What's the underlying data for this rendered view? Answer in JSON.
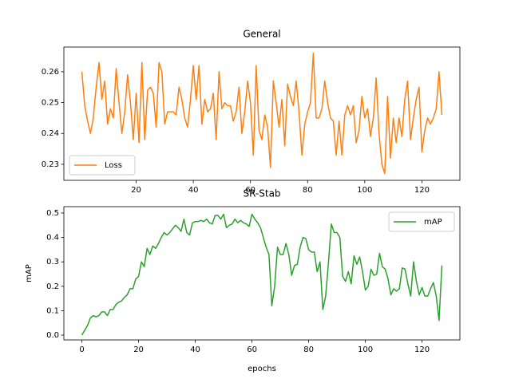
{
  "chart_data": [
    {
      "type": "line",
      "title": "General",
      "x": [
        1,
        2,
        3,
        4,
        5,
        6,
        7,
        8,
        9,
        10,
        11,
        12,
        13,
        14,
        15,
        16,
        17,
        18,
        19,
        20,
        21,
        22,
        23,
        24,
        25,
        26,
        27,
        28,
        29,
        30,
        31,
        32,
        33,
        34,
        35,
        36,
        37,
        38,
        39,
        40,
        41,
        42,
        43,
        44,
        45,
        46,
        47,
        48,
        49,
        50,
        51,
        52,
        53,
        54,
        55,
        56,
        57,
        58,
        59,
        60,
        61,
        62,
        63,
        64,
        65,
        66,
        67,
        68,
        69,
        70,
        71,
        72,
        73,
        74,
        75,
        76,
        77,
        78,
        79,
        80,
        81,
        82,
        83,
        84,
        85,
        86,
        87,
        88,
        89,
        90,
        91,
        92,
        93,
        94,
        95,
        96,
        97,
        98,
        99,
        100,
        101,
        102,
        103,
        104,
        105,
        106,
        107,
        108,
        109,
        110,
        111,
        112,
        113,
        114,
        115,
        116,
        117,
        118,
        119,
        120,
        121,
        122,
        123,
        124,
        125,
        126,
        127
      ],
      "series": [
        {
          "name": "Loss",
          "color": "#ff7f0e",
          "values": [
            0.26,
            0.249,
            0.244,
            0.24,
            0.245,
            0.255,
            0.263,
            0.251,
            0.257,
            0.243,
            0.248,
            0.245,
            0.261,
            0.25,
            0.24,
            0.247,
            0.259,
            0.25,
            0.238,
            0.253,
            0.237,
            0.263,
            0.238,
            0.254,
            0.255,
            0.253,
            0.242,
            0.263,
            0.26,
            0.243,
            0.247,
            0.247,
            0.247,
            0.246,
            0.255,
            0.251,
            0.245,
            0.242,
            0.251,
            0.262,
            0.251,
            0.262,
            0.243,
            0.251,
            0.247,
            0.248,
            0.253,
            0.238,
            0.26,
            0.248,
            0.25,
            0.249,
            0.249,
            0.244,
            0.247,
            0.255,
            0.24,
            0.247,
            0.257,
            0.25,
            0.233,
            0.262,
            0.241,
            0.238,
            0.246,
            0.242,
            0.229,
            0.257,
            0.25,
            0.242,
            0.251,
            0.236,
            0.256,
            0.252,
            0.249,
            0.257,
            0.247,
            0.233,
            0.243,
            0.247,
            0.25,
            0.266,
            0.245,
            0.245,
            0.248,
            0.257,
            0.25,
            0.245,
            0.244,
            0.233,
            0.244,
            0.233,
            0.246,
            0.249,
            0.246,
            0.249,
            0.237,
            0.241,
            0.252,
            0.245,
            0.248,
            0.239,
            0.245,
            0.258,
            0.24,
            0.23,
            0.227,
            0.252,
            0.232,
            0.245,
            0.237,
            0.245,
            0.239,
            0.251,
            0.257,
            0.238,
            0.245,
            0.251,
            0.255,
            0.234,
            0.241,
            0.245,
            0.243,
            0.245,
            0.248,
            0.26,
            0.246
          ]
        }
      ],
      "xlim": [
        -5.3,
        133.3
      ],
      "ylim": [
        0.2248,
        0.268
      ],
      "xticks": [
        20,
        40,
        60,
        80,
        100,
        120
      ],
      "yticks": [
        0.23,
        0.24,
        0.25,
        0.26
      ],
      "legend": "lower left"
    },
    {
      "type": "line",
      "title": "SR-Stab",
      "xlabel": "epochs",
      "ylabel": "mAP",
      "x": [
        0,
        1,
        2,
        3,
        4,
        5,
        6,
        7,
        8,
        9,
        10,
        11,
        12,
        13,
        14,
        15,
        16,
        17,
        18,
        19,
        20,
        21,
        22,
        23,
        24,
        25,
        26,
        27,
        28,
        29,
        30,
        31,
        32,
        33,
        34,
        35,
        36,
        37,
        38,
        39,
        40,
        41,
        42,
        43,
        44,
        45,
        46,
        47,
        48,
        49,
        50,
        51,
        52,
        53,
        54,
        55,
        56,
        57,
        58,
        59,
        60,
        61,
        62,
        63,
        64,
        65,
        66,
        67,
        68,
        69,
        70,
        71,
        72,
        73,
        74,
        75,
        76,
        77,
        78,
        79,
        80,
        81,
        82,
        83,
        84,
        85,
        86,
        87,
        88,
        89,
        90,
        91,
        92,
        93,
        94,
        95,
        96,
        97,
        98,
        99,
        100,
        101,
        102,
        103,
        104,
        105,
        106,
        107,
        108,
        109,
        110,
        111,
        112,
        113,
        114,
        115,
        116,
        117,
        118,
        119,
        120,
        121,
        122,
        123,
        124,
        125,
        126,
        127
      ],
      "series": [
        {
          "name": "mAP",
          "color": "#2ca02c",
          "values": [
            0.0,
            0.02,
            0.04,
            0.07,
            0.08,
            0.075,
            0.08,
            0.095,
            0.095,
            0.08,
            0.105,
            0.105,
            0.125,
            0.135,
            0.14,
            0.155,
            0.165,
            0.19,
            0.19,
            0.23,
            0.24,
            0.3,
            0.28,
            0.355,
            0.33,
            0.365,
            0.355,
            0.375,
            0.4,
            0.42,
            0.41,
            0.42,
            0.435,
            0.45,
            0.44,
            0.425,
            0.475,
            0.42,
            0.41,
            0.46,
            0.465,
            0.465,
            0.47,
            0.465,
            0.475,
            0.46,
            0.455,
            0.49,
            0.49,
            0.475,
            0.495,
            0.44,
            0.45,
            0.455,
            0.475,
            0.46,
            0.47,
            0.46,
            0.455,
            0.445,
            0.495,
            0.475,
            0.46,
            0.44,
            0.4,
            0.36,
            0.33,
            0.12,
            0.2,
            0.36,
            0.33,
            0.33,
            0.375,
            0.33,
            0.245,
            0.285,
            0.29,
            0.36,
            0.4,
            0.395,
            0.35,
            0.34,
            0.34,
            0.26,
            0.3,
            0.105,
            0.16,
            0.3,
            0.455,
            0.42,
            0.42,
            0.4,
            0.24,
            0.22,
            0.26,
            0.21,
            0.325,
            0.29,
            0.32,
            0.26,
            0.185,
            0.2,
            0.27,
            0.245,
            0.25,
            0.335,
            0.28,
            0.27,
            0.23,
            0.165,
            0.19,
            0.18,
            0.19,
            0.275,
            0.27,
            0.21,
            0.16,
            0.3,
            0.22,
            0.165,
            0.195,
            0.16,
            0.16,
            0.19,
            0.215,
            0.16,
            0.06,
            0.285
          ]
        }
      ],
      "xlim": [
        -6.35,
        133.35
      ],
      "ylim": [
        -0.0196,
        0.526
      ],
      "xticks": [
        0,
        20,
        40,
        60,
        80,
        100,
        120
      ],
      "yticks": [
        {
          "value": 0,
          "label": "0.0"
        },
        0.1,
        0.2,
        0.3,
        0.4,
        0.5
      ],
      "legend": "upper right"
    }
  ]
}
